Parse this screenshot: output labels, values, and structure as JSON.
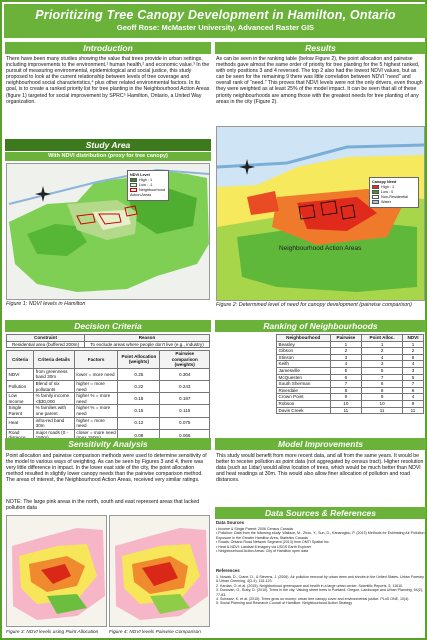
{
  "header": {
    "title": "Prioritizing Tree Canopy Development in Hamilton, Ontario",
    "authors": "Geoff Rose: McMaster University, Advanced Raster GIS"
  },
  "intro": {
    "heading": "Introduction",
    "body": "There have been many studies showing the value that trees provide in urban settings, including improvements to the environment,¹ human health,² and economic value.³ In the pursuit of measuring environmental, epidemiological and social justice, this study proposed to look at the current relationship between levels of tree coverage and neighbourhood social characteristics,⁴ plus other related environmental factors. In its goal, is to create a ranked priority list for tree planting in the Neighbourhood Action Areas (figure 1) targeted for social improvement by SPRC⁵ Hamilton, Ontario, a United Way organization."
  },
  "study_area": {
    "heading": "Study Area",
    "subheading": "With NDVI distribution (proxy for tree canopy)",
    "legend_title": "NDVI Level",
    "legend_items": [
      "High : 1",
      "Low : -1"
    ],
    "legend_label": "Neighbourhood Action Areas",
    "caption": "Figure 1: NDVI levels in Hamilton"
  },
  "results": {
    "heading": "Results",
    "body": "As can be seen in the ranking table (below Figure 2), the point allocation and pairwise methods gave almost the same order of priority for tree planting for the 5 highest ranked, with only positions 3 and 4 reversed. The top 2 also had the lowest NDVI values, but as can be seen for the remaining 9 there was little correlation between NDVI “need” and overall rank of “need.” This proves that NDVI levels were not the only drivers, even though they were weighted as at least 25% of the model impact. It can be seen that all of these priority neighbourhoods are among those with the greatest needs for tree planting of any areas in the city (Figure 2).",
    "legend_title": "Canopy Need",
    "legend_items": [
      "High : 1",
      "Low : 0",
      "Non-Residential",
      "Water"
    ],
    "map_label": "Neighbourhood Action Areas",
    "caption": "Figure 2: Determined level of need for canopy development (pairwise comparison)"
  },
  "decision": {
    "heading": "Decision Criteria",
    "constraint_header": "Constraint",
    "reason_header": "Reason",
    "constraint_row": {
      "c": "Residential area (buffered 200m)",
      "r": "To exclude areas where people don't live (e.g., industry)"
    },
    "factor_headers": [
      "Criteria",
      "Criteria details",
      "Factors",
      "Point Allocation (weights)",
      "Pairwise comparison (weights)"
    ],
    "rows": [
      [
        "NDVI",
        "from greenness band 30m",
        "lower = more need",
        "0.25",
        "0.304"
      ],
      [
        "Pollution",
        "Blend of six pollutants",
        "higher = more need",
        "0.22",
        "0.243"
      ],
      [
        "Low Income",
        "% family income <$30,000",
        "higher % = more need",
        "0.18",
        "0.197"
      ],
      [
        "Single Parent",
        "% families with one parent",
        "higher % = more need",
        "0.15",
        "0.115"
      ],
      [
        "Heat",
        "infra-red band 30m",
        "higher = more need",
        "0.12",
        "0.075"
      ],
      [
        "Road distance",
        "major roads (0 - 150m)",
        "closer = more need (max 150m)",
        "0.08",
        "0.066"
      ]
    ]
  },
  "ranking": {
    "heading": "Ranking of Neighbourhoods",
    "headers": [
      "Neighbourhood",
      "Pairwise",
      "Point Alloc.",
      "NDVI"
    ],
    "rows": [
      [
        "Beasley",
        "1",
        "1",
        "1"
      ],
      [
        "Gibson",
        "2",
        "2",
        "2"
      ],
      [
        "Stinson",
        "3",
        "4",
        "8"
      ],
      [
        "Keith",
        "4",
        "3",
        "4"
      ],
      [
        "Jamesville",
        "5",
        "5",
        "3"
      ],
      [
        "McQuesten",
        "6",
        "7",
        "5"
      ],
      [
        "South Sherman",
        "7",
        "6",
        "7"
      ],
      [
        "Riverdale",
        "8",
        "8",
        "6"
      ],
      [
        "Crown Point",
        "9",
        "9",
        "4"
      ],
      [
        "Robson",
        "10",
        "10",
        "9"
      ],
      [
        "Davis Creek",
        "11",
        "11",
        "11"
      ]
    ]
  },
  "sensitivity": {
    "heading": "Sensitivity Analysis",
    "body": "Point allocation and pairwise comparison methods were used to determine sensitivity of the model to various ways of weighting. As can be seen by Figures 3 and 4, there was very little difference in impact. In the lower east side of the city, the point allocation method resulted in slightly lower canopy needs than the pairwise comparison method. The areas of interest, the Neighbourhood Action Areas, received very similar ratings.",
    "note": "NOTE: The large pink areas in the north, south and east represent areas that lacked pollution data",
    "caption3": "Figure 3: NDVI levels using Point Allocation",
    "caption4": "Figure 4: NDVI levels Pairwise Comparison"
  },
  "improvements": {
    "heading": "Model Improvements",
    "body": "This study would benefit from more recent data, and all from the same years. It would be better to receive pollution as point data (not aggregated by census tract). Higher resolution data (such as Lidar) would allow location of trees, which would be much better than NDVI and heat readings at 30m. This would also allow finer allocation of pollution and road distances."
  },
  "sources": {
    "heading": "Data Sources & References",
    "data_title": "Data Sources",
    "data_items": [
      "• Income & Single Parent: 2006 Census Canada",
      "• Pollution: Data from the following study: Wallace, M., Zhou, Y., Sun, D., Kanaroglou, P. (2013) Methods for Estimating Air Pollution Exposure in the Greater Hamilton Area, Statistics Canada",
      "• Roads: Ontario Road Network Segment (2013) from DMTI Spatial Inc.",
      "• Heat & NDVI: Landsat 8 imagery via USGS Earth Explorer",
      "• Neighbourhood Action Areas: City of Hamilton open data"
    ],
    "ref_title": "References",
    "ref_items": [
      "1. Nowak, D., Crane, D., & Stevens, J. (2006). Air pollution removal by urban trees and shrubs in the United States. Urban Forestry & Urban Greening, 4(3-4), 115-123.",
      "2. Kardan, O. et al. (2015). Neighborhood greenspace and health in a large urban center. Scientific Reports, 5, 11610.",
      "3. Donovan, G., Butry, D. (2010). Trees in the city: Valuing street trees in Portland, Oregon. Landscape and Urban Planning, 94(2), 77-83.",
      "4. Schwarz, K. et al. (2015). Trees grow on money: urban tree canopy cover and environmental justice. PLoS ONE, 10(4).",
      "5. Social Planning and Research Council of Hamilton: Neighbourhood Action Strategy"
    ]
  }
}
